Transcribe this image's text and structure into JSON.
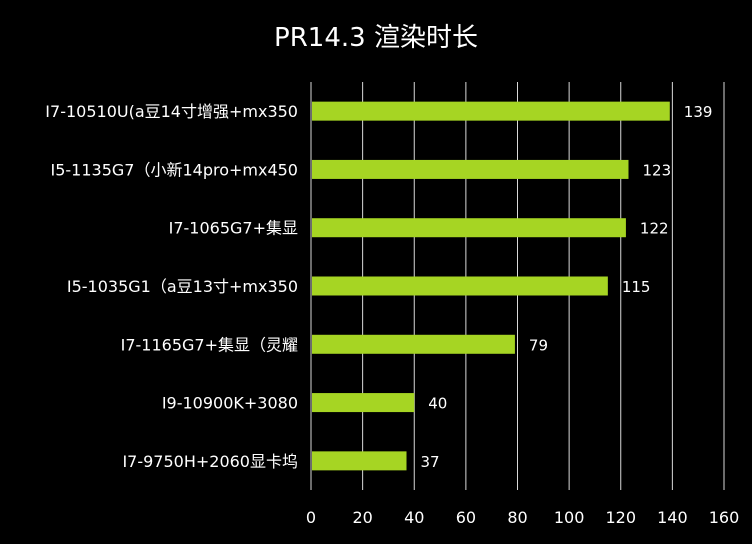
{
  "chart_data": {
    "type": "bar",
    "orientation": "horizontal",
    "title": "PR14.3 渲染时长",
    "categories": [
      "I7-10510U(a豆14寸增强+mx350",
      "I5-1135G7（小新14pro+mx450",
      "I7-1065G7+集显",
      "I5-1035G1（a豆13寸+mx350",
      "I7-1165G7+集显（灵耀",
      "I9-10900K+3080",
      "I7-9750H+2060显卡坞"
    ],
    "values": [
      139,
      123,
      122,
      115,
      79,
      40,
      37
    ],
    "xlim": [
      0,
      160
    ],
    "xticks": [
      0,
      20,
      40,
      60,
      80,
      100,
      120,
      140,
      160
    ],
    "xlabel": "",
    "ylabel": "",
    "grid": "vertical",
    "legend": "none",
    "colors": {
      "background": "#000000",
      "bar": "#a6d523",
      "text": "#ffffff",
      "grid": "#d9d9d9"
    }
  }
}
